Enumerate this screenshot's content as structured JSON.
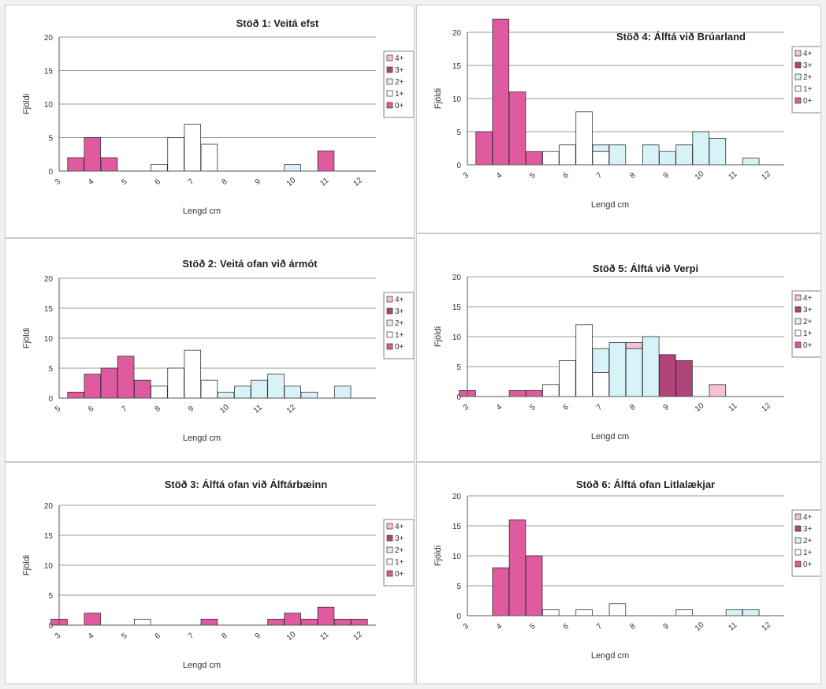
{
  "colors": {
    "0+": "#e05aa0",
    "1+": "#ffffff",
    "2+": "#d8f3f7",
    "3+": "#b0447a",
    "4+": "#f7c2d4",
    "edge": "#333333",
    "gridline": "#9a9a9a",
    "panel_bg": "#ffffff",
    "page_bg": "#f2f1ef"
  },
  "chart_data": [
    {
      "type": "bar",
      "stacked": true,
      "title": "Stöð 1:  Veitá efst",
      "xlabel": "Lengd cm",
      "ylabel": "Fjöldi",
      "xticks": [
        3,
        4,
        5,
        6,
        7,
        8,
        9,
        10,
        11,
        12
      ],
      "xlim": [
        3,
        12.5
      ],
      "ylim": [
        0,
        20
      ],
      "yticks": [
        0,
        5,
        10,
        15,
        20
      ],
      "grid": true,
      "legend": {
        "placement": "right",
        "entries": [
          "4+",
          "3+",
          "2+",
          "1+",
          "0+"
        ]
      },
      "bars": [
        {
          "x": 3.5,
          "0+": 2
        },
        {
          "x": 4.0,
          "0+": 5
        },
        {
          "x": 4.5,
          "0+": 2
        },
        {
          "x": 6.0,
          "1+": 1
        },
        {
          "x": 6.5,
          "1+": 5
        },
        {
          "x": 7.0,
          "1+": 7
        },
        {
          "x": 7.5,
          "1+": 4
        },
        {
          "x": 10.0,
          "2+": 1
        },
        {
          "x": 11.0,
          "0+": 3
        }
      ]
    },
    {
      "type": "bar",
      "stacked": true,
      "title": "Stöð 4: Álftá við Brúarland",
      "xlabel": "Lengd cm",
      "ylabel": "Fjöldi",
      "xticks": [
        3,
        4,
        5,
        6,
        7,
        8,
        9,
        10,
        11,
        12
      ],
      "xlim": [
        3,
        12.5
      ],
      "ylim": [
        0,
        20
      ],
      "yticks": [
        0,
        5,
        10,
        15,
        20
      ],
      "grid": true,
      "legend": {
        "placement": "right",
        "entries": [
          "4+",
          "3+",
          "2+",
          "1+",
          "0+"
        ]
      },
      "bars": [
        {
          "x": 3.5,
          "0+": 5
        },
        {
          "x": 4.0,
          "0+": 22
        },
        {
          "x": 4.5,
          "0+": 11
        },
        {
          "x": 5.0,
          "0+": 2
        },
        {
          "x": 5.5,
          "1+": 2
        },
        {
          "x": 6.0,
          "1+": 3
        },
        {
          "x": 6.5,
          "1+": 8
        },
        {
          "x": 7.0,
          "1+": 2,
          "2+": 1
        },
        {
          "x": 7.5,
          "2+": 3
        },
        {
          "x": 8.5,
          "2+": 3
        },
        {
          "x": 9.0,
          "2+": 2
        },
        {
          "x": 9.5,
          "2+": 3
        },
        {
          "x": 10.0,
          "2+": 5
        },
        {
          "x": 10.5,
          "2+": 4
        },
        {
          "x": 11.5,
          "2+": 1
        }
      ]
    },
    {
      "type": "bar",
      "stacked": true,
      "title": "Stöð 2:  Veitá ofan við ármót",
      "xlabel": "Lengd cm",
      "ylabel": "Fjöldi",
      "xticks": [
        5,
        6,
        7,
        8,
        9,
        10,
        11,
        12
      ],
      "xlim": [
        5,
        14.5
      ],
      "ylim": [
        0,
        20
      ],
      "yticks": [
        0,
        5,
        10,
        15,
        20
      ],
      "grid": true,
      "legend": {
        "placement": "right",
        "entries": [
          "4+",
          "3+",
          "2+",
          "1+",
          "0+"
        ]
      },
      "bars": [
        {
          "x": 5.5,
          "0+": 1
        },
        {
          "x": 6.0,
          "0+": 4
        },
        {
          "x": 6.5,
          "0+": 5
        },
        {
          "x": 7.0,
          "0+": 7
        },
        {
          "x": 7.5,
          "0+": 3
        },
        {
          "x": 8.0,
          "1+": 2
        },
        {
          "x": 8.5,
          "1+": 5
        },
        {
          "x": 9.0,
          "1+": 8
        },
        {
          "x": 9.5,
          "1+": 3
        },
        {
          "x": 10.0,
          "2+": 1
        },
        {
          "x": 10.5,
          "2+": 2
        },
        {
          "x": 11.0,
          "2+": 3
        },
        {
          "x": 11.5,
          "2+": 4
        },
        {
          "x": 12.0,
          "2+": 2
        },
        {
          "x": 12.5,
          "2+": 1
        },
        {
          "x": 13.5,
          "2+": 2
        }
      ]
    },
    {
      "type": "bar",
      "stacked": true,
      "title": "Stöð 5:  Álftá við Verpi",
      "xlabel": "Lengd cm",
      "ylabel": "Fjöldi",
      "xticks": [
        3,
        4,
        5,
        6,
        7,
        8,
        9,
        10,
        11,
        12
      ],
      "xlim": [
        3,
        12.5
      ],
      "ylim": [
        0,
        20
      ],
      "yticks": [
        0,
        5,
        10,
        15,
        20
      ],
      "grid": true,
      "legend": {
        "placement": "right",
        "entries": [
          "4+",
          "3+",
          "2+",
          "1+",
          "0+"
        ]
      },
      "bars": [
        {
          "x": 3.0,
          "0+": 1
        },
        {
          "x": 4.5,
          "0+": 1
        },
        {
          "x": 5.0,
          "0+": 1
        },
        {
          "x": 5.5,
          "1+": 2
        },
        {
          "x": 6.0,
          "1+": 6
        },
        {
          "x": 6.5,
          "1+": 12
        },
        {
          "x": 7.0,
          "1+": 4,
          "2+": 4
        },
        {
          "x": 7.5,
          "2+": 9
        },
        {
          "x": 8.0,
          "2+": 8,
          "4+": 1
        },
        {
          "x": 8.5,
          "2+": 10
        },
        {
          "x": 9.0,
          "3+": 7
        },
        {
          "x": 9.5,
          "3+": 6
        },
        {
          "x": 10.5,
          "4+": 2
        }
      ]
    },
    {
      "type": "bar",
      "stacked": true,
      "title": "Stöð 3:  Álftá ofan við Álftárbæinn",
      "xlabel": "Lengd cm",
      "ylabel": "Fjöldi",
      "xticks": [
        3,
        4,
        5,
        6,
        7,
        8,
        9,
        10,
        11,
        12
      ],
      "xlim": [
        3,
        12.5
      ],
      "ylim": [
        0,
        20
      ],
      "yticks": [
        0,
        5,
        10,
        15,
        20
      ],
      "grid": true,
      "legend": {
        "placement": "right",
        "entries": [
          "4+",
          "3+",
          "2+",
          "1+",
          "0+"
        ]
      },
      "bars": [
        {
          "x": 3.0,
          "0+": 1
        },
        {
          "x": 4.0,
          "0+": 2
        },
        {
          "x": 5.5,
          "1+": 1
        },
        {
          "x": 7.5,
          "0+": 1
        },
        {
          "x": 9.5,
          "0+": 1
        },
        {
          "x": 10.0,
          "0+": 2
        },
        {
          "x": 10.5,
          "0+": 1
        },
        {
          "x": 11.0,
          "0+": 3
        },
        {
          "x": 11.5,
          "0+": 1
        },
        {
          "x": 12.0,
          "0+": 1
        }
      ]
    },
    {
      "type": "bar",
      "stacked": true,
      "title": "Stöð 6:  Álftá ofan Litlalækjar",
      "xlabel": "Lengd cm",
      "ylabel": "Fjöldi",
      "xticks": [
        3,
        4,
        5,
        6,
        7,
        8,
        9,
        10,
        11,
        12
      ],
      "xlim": [
        3,
        12.5
      ],
      "ylim": [
        0,
        20
      ],
      "yticks": [
        0,
        5,
        10,
        15,
        20
      ],
      "grid": true,
      "legend": {
        "placement": "right",
        "entries": [
          "4+",
          "3+",
          "2+",
          "1+",
          "0+"
        ]
      },
      "bars": [
        {
          "x": 4.0,
          "0+": 8
        },
        {
          "x": 4.5,
          "0+": 16
        },
        {
          "x": 5.0,
          "0+": 10
        },
        {
          "x": 5.5,
          "1+": 1
        },
        {
          "x": 6.5,
          "1+": 1
        },
        {
          "x": 7.5,
          "1+": 2
        },
        {
          "x": 9.5,
          "1+": 1
        },
        {
          "x": 11.0,
          "2+": 1
        },
        {
          "x": 11.5,
          "2+": 1
        }
      ]
    }
  ]
}
